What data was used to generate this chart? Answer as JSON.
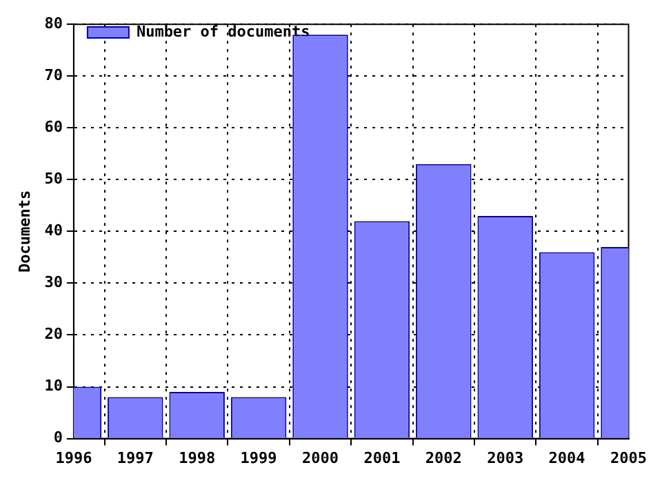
{
  "chart_data": {
    "type": "bar",
    "ylabel": "Documents",
    "x": [
      1996,
      1997,
      1998,
      1999,
      2000,
      2001,
      2002,
      2003,
      2004,
      2005
    ],
    "series": [
      {
        "name": "Number of documents",
        "color": "#8080ff",
        "values": [
          10,
          8,
          9,
          8,
          78,
          42,
          53,
          43,
          36,
          37
        ]
      }
    ],
    "xlim": [
      1996,
      2005
    ],
    "xticks": [
      1996,
      1997,
      1998,
      1999,
      2000,
      2001,
      2002,
      2003,
      2004,
      2005
    ],
    "ylim": [
      0,
      80
    ],
    "yticks": [
      0,
      10,
      20,
      30,
      40,
      50,
      60,
      70,
      80
    ],
    "grid": true,
    "legend": "top left"
  }
}
